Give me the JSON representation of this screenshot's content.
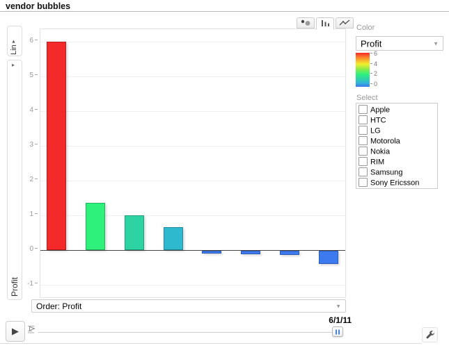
{
  "header": {
    "title": "vendor bubbles"
  },
  "icons": {
    "dropdown_arrow": "▼",
    "small_arrow": "▾",
    "collapsed_arrow": "▸",
    "play": "▶"
  },
  "toolbar": {
    "selected_tab": "bar"
  },
  "y_axis": {
    "scale_label": "Lin",
    "axis_label": "Profit",
    "ticks": [
      6,
      5,
      4,
      3,
      2,
      1,
      0,
      -1
    ]
  },
  "color_panel": {
    "label": "Color",
    "dropdown_value": "Profit",
    "legend_ticks": [
      6,
      4,
      2,
      0
    ],
    "gradient_stops": [
      "#f42a2a 0%",
      "#fb8d2a 15%",
      "#f2ee2e 33%",
      "#8deb49 48%",
      "#2ef17c 63%",
      "#2cd4a2 76%",
      "#31b5d8 88%",
      "#3c78ef 100%"
    ]
  },
  "select_panel": {
    "label": "Select",
    "items": [
      {
        "label": "Apple",
        "checked": false
      },
      {
        "label": "HTC",
        "checked": false
      },
      {
        "label": "LG",
        "checked": false
      },
      {
        "label": "Motorola",
        "checked": false
      },
      {
        "label": "Nokia",
        "checked": false
      },
      {
        "label": "RIM",
        "checked": false
      },
      {
        "label": "Samsung",
        "checked": false
      },
      {
        "label": "Sony Ericsson",
        "checked": false
      }
    ]
  },
  "order_bar": {
    "label": "Order: Profit"
  },
  "timeline": {
    "date_label": "6/1/11"
  },
  "chart_data": {
    "type": "bar",
    "title": "vendor bubbles",
    "xlabel": "",
    "ylabel": "Profit",
    "x_tick_labels_visible": false,
    "y_ticks": [
      -1,
      0,
      1,
      2,
      3,
      4,
      5,
      6
    ],
    "ylim": [
      -1.4,
      6.36
    ],
    "values": [
      6.0,
      1.35,
      1.0,
      0.66,
      -0.07,
      -0.1,
      -0.12,
      -0.38
    ],
    "bar_colors": [
      "#f42a2a",
      "#2ef17c",
      "#2ed3a3",
      "#2fb9ce",
      "#3d79ef",
      "#3d79ef",
      "#3d79ef",
      "#3d79ef"
    ],
    "color_scale": {
      "field": "Profit",
      "min": 0,
      "max": 6,
      "ticks": [
        6,
        4,
        2,
        0
      ]
    },
    "grid": true,
    "legend_position": "right"
  }
}
